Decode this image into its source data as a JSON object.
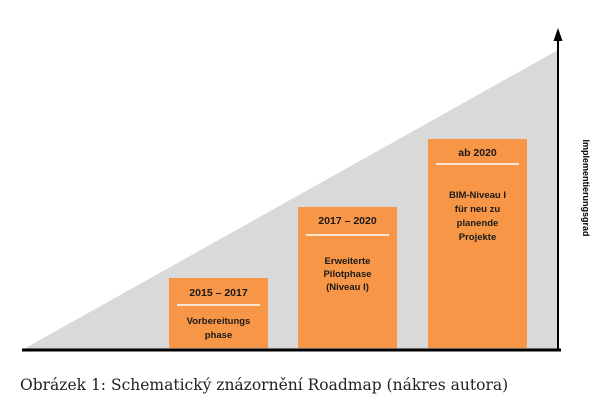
{
  "colors": {
    "wedge": "#d9d9d9",
    "box": "#f79646",
    "divider": "#ffffff",
    "axis": "#000000"
  },
  "axis": {
    "y_label": "Implementierungsgrad"
  },
  "phases": [
    {
      "date": "2015 – 2017",
      "lines": [
        "Vorbereitungs",
        "phase"
      ]
    },
    {
      "date": "2017 – 2020",
      "lines": [
        "Erweiterte",
        "Pilotphase",
        "(Niveau I)"
      ]
    },
    {
      "date": "ab 2020",
      "lines": [
        "BIM-Niveau I",
        "für neu zu",
        "planende",
        "Projekte"
      ]
    }
  ],
  "caption": "Obrázek 1: Schematický znázornění Roadmap (nákres autora)"
}
